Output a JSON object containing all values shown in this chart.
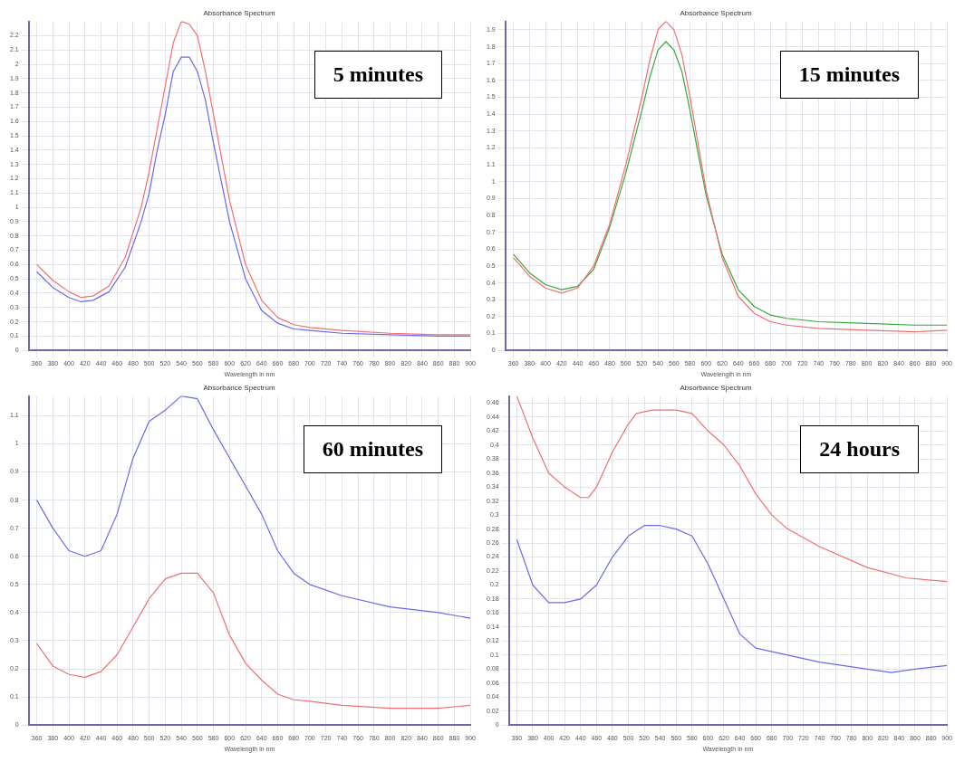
{
  "chart_data": [
    {
      "type": "line",
      "title": "Absorbance Spectrum",
      "xlabel": "Wavelength in nm",
      "annotations": [
        "5 minutes"
      ],
      "xlim": [
        350,
        900
      ],
      "xticks": [
        360,
        380,
        400,
        420,
        440,
        460,
        480,
        500,
        520,
        540,
        560,
        580,
        600,
        620,
        640,
        660,
        680,
        700,
        720,
        740,
        760,
        780,
        800,
        820,
        840,
        860,
        880,
        900
      ],
      "ylim": [
        0,
        2.3
      ],
      "yticks": [
        0,
        0.1,
        0.2,
        0.3,
        0.4,
        0.5,
        0.6,
        0.7,
        0.8,
        0.9,
        1,
        1.1,
        1.2,
        1.3,
        1.4,
        1.5,
        1.6,
        1.7,
        1.8,
        1.9,
        2,
        2.1,
        2.2
      ],
      "grid": true,
      "marker": "none",
      "line_style": "solid",
      "series": [
        {
          "color": "#f07070",
          "x": [
            360,
            380,
            400,
            415,
            430,
            450,
            470,
            490,
            500,
            510,
            520,
            530,
            540,
            550,
            560,
            570,
            580,
            600,
            620,
            640,
            660,
            680,
            700,
            740,
            800,
            860,
            900
          ],
          "values": [
            0.6,
            0.49,
            0.41,
            0.37,
            0.38,
            0.45,
            0.65,
            1.0,
            1.25,
            1.55,
            1.85,
            2.15,
            2.3,
            2.28,
            2.2,
            1.95,
            1.65,
            1.05,
            0.6,
            0.35,
            0.23,
            0.18,
            0.16,
            0.14,
            0.12,
            0.11,
            0.11
          ]
        },
        {
          "color": "#6a6ae8",
          "x": [
            360,
            380,
            400,
            415,
            430,
            450,
            470,
            490,
            500,
            510,
            520,
            530,
            540,
            550,
            560,
            570,
            580,
            600,
            620,
            640,
            660,
            680,
            700,
            740,
            800,
            860,
            900
          ],
          "values": [
            0.55,
            0.44,
            0.37,
            0.34,
            0.35,
            0.41,
            0.58,
            0.9,
            1.1,
            1.4,
            1.65,
            1.95,
            2.05,
            2.05,
            1.95,
            1.75,
            1.45,
            0.9,
            0.5,
            0.28,
            0.19,
            0.15,
            0.14,
            0.12,
            0.11,
            0.1,
            0.1
          ]
        }
      ]
    },
    {
      "type": "line",
      "title": "Absorbance Spectrum",
      "xlabel": "Wavelength in nm",
      "annotations": [
        "15 minutes"
      ],
      "xlim": [
        350,
        900
      ],
      "xticks": [
        360,
        380,
        400,
        420,
        440,
        460,
        480,
        500,
        520,
        540,
        560,
        580,
        600,
        620,
        640,
        660,
        680,
        700,
        720,
        740,
        760,
        780,
        800,
        820,
        840,
        860,
        880,
        900
      ],
      "ylim": [
        0,
        1.95
      ],
      "yticks": [
        0,
        0.1,
        0.2,
        0.3,
        0.4,
        0.5,
        0.6,
        0.7,
        0.8,
        0.9,
        1,
        1.1,
        1.2,
        1.3,
        1.4,
        1.5,
        1.6,
        1.7,
        1.8,
        1.9
      ],
      "grid": true,
      "marker": "none",
      "line_style": "solid",
      "series": [
        {
          "color": "#f07070",
          "x": [
            360,
            380,
            400,
            420,
            440,
            460,
            480,
            500,
            520,
            530,
            540,
            550,
            560,
            570,
            580,
            600,
            620,
            640,
            660,
            680,
            700,
            740,
            800,
            860,
            900
          ],
          "values": [
            0.55,
            0.44,
            0.37,
            0.34,
            0.37,
            0.5,
            0.75,
            1.1,
            1.5,
            1.72,
            1.9,
            1.95,
            1.9,
            1.75,
            1.5,
            0.95,
            0.55,
            0.32,
            0.22,
            0.17,
            0.15,
            0.13,
            0.12,
            0.11,
            0.12
          ]
        },
        {
          "color": "#3aa53a",
          "x": [
            360,
            380,
            400,
            420,
            440,
            460,
            480,
            500,
            520,
            530,
            540,
            550,
            560,
            570,
            580,
            600,
            620,
            640,
            660,
            680,
            700,
            740,
            800,
            860,
            900
          ],
          "values": [
            0.57,
            0.46,
            0.39,
            0.36,
            0.38,
            0.48,
            0.73,
            1.05,
            1.42,
            1.62,
            1.78,
            1.83,
            1.78,
            1.65,
            1.42,
            0.92,
            0.57,
            0.36,
            0.26,
            0.21,
            0.19,
            0.17,
            0.16,
            0.15,
            0.15
          ]
        }
      ]
    },
    {
      "type": "line",
      "title": "Absorbance Spectrum",
      "xlabel": "Wavelength in nm",
      "annotations": [
        "60 minutes"
      ],
      "xlim": [
        350,
        900
      ],
      "xticks": [
        360,
        380,
        400,
        420,
        440,
        460,
        480,
        500,
        520,
        540,
        560,
        580,
        600,
        620,
        640,
        660,
        680,
        700,
        720,
        740,
        760,
        780,
        800,
        820,
        840,
        860,
        880,
        900
      ],
      "ylim": [
        0,
        1.17
      ],
      "yticks": [
        0,
        0.1,
        0.2,
        0.3,
        0.4,
        0.5,
        0.6,
        0.7,
        0.8,
        0.9,
        1,
        1.1
      ],
      "grid": true,
      "marker": "none",
      "line_style": "solid",
      "series": [
        {
          "color": "#6a6ae8",
          "x": [
            360,
            380,
            400,
            420,
            440,
            460,
            480,
            500,
            520,
            540,
            560,
            580,
            600,
            620,
            640,
            660,
            680,
            700,
            740,
            800,
            860,
            900
          ],
          "values": [
            0.8,
            0.7,
            0.62,
            0.6,
            0.62,
            0.75,
            0.95,
            1.08,
            1.12,
            1.17,
            1.16,
            1.05,
            0.95,
            0.85,
            0.75,
            0.62,
            0.54,
            0.5,
            0.46,
            0.42,
            0.4,
            0.38
          ]
        },
        {
          "color": "#f07070",
          "x": [
            360,
            380,
            400,
            420,
            440,
            460,
            480,
            500,
            520,
            540,
            560,
            580,
            600,
            620,
            640,
            660,
            680,
            700,
            740,
            800,
            860,
            900
          ],
          "values": [
            0.29,
            0.21,
            0.18,
            0.17,
            0.19,
            0.25,
            0.35,
            0.45,
            0.52,
            0.54,
            0.54,
            0.47,
            0.32,
            0.22,
            0.16,
            0.11,
            0.09,
            0.085,
            0.07,
            0.06,
            0.06,
            0.07
          ]
        }
      ]
    },
    {
      "type": "line",
      "title": "Absorbance Spectrum",
      "xlabel": "Wavelength in nm",
      "annotations": [
        "24 hours"
      ],
      "xlim": [
        350,
        900
      ],
      "xticks": [
        360,
        380,
        400,
        420,
        440,
        460,
        480,
        500,
        520,
        540,
        560,
        580,
        600,
        620,
        640,
        660,
        680,
        700,
        720,
        740,
        760,
        780,
        800,
        820,
        840,
        860,
        880,
        900
      ],
      "ylim": [
        0,
        0.47
      ],
      "yticks": [
        0,
        0.02,
        0.04,
        0.06,
        0.08,
        0.1,
        0.12,
        0.14,
        0.16,
        0.18,
        0.2,
        0.22,
        0.24,
        0.26,
        0.28,
        0.3,
        0.32,
        0.34,
        0.36,
        0.38,
        0.4,
        0.42,
        0.44,
        0.46
      ],
      "grid": true,
      "marker": "none",
      "line_style": "solid",
      "series": [
        {
          "color": "#f07070",
          "x": [
            360,
            380,
            400,
            420,
            440,
            450,
            460,
            480,
            500,
            510,
            530,
            560,
            580,
            600,
            620,
            640,
            660,
            680,
            700,
            740,
            800,
            850,
            900
          ],
          "values": [
            0.47,
            0.41,
            0.36,
            0.34,
            0.325,
            0.325,
            0.34,
            0.39,
            0.43,
            0.445,
            0.45,
            0.45,
            0.445,
            0.42,
            0.4,
            0.37,
            0.33,
            0.3,
            0.28,
            0.255,
            0.225,
            0.21,
            0.205
          ]
        },
        {
          "color": "#6a6ae8",
          "x": [
            360,
            380,
            400,
            420,
            440,
            460,
            480,
            500,
            520,
            540,
            560,
            580,
            600,
            620,
            640,
            660,
            700,
            740,
            800,
            830,
            860,
            900
          ],
          "values": [
            0.265,
            0.2,
            0.175,
            0.175,
            0.18,
            0.2,
            0.24,
            0.27,
            0.285,
            0.285,
            0.28,
            0.27,
            0.23,
            0.18,
            0.13,
            0.11,
            0.1,
            0.09,
            0.08,
            0.075,
            0.08,
            0.085
          ]
        }
      ]
    }
  ]
}
